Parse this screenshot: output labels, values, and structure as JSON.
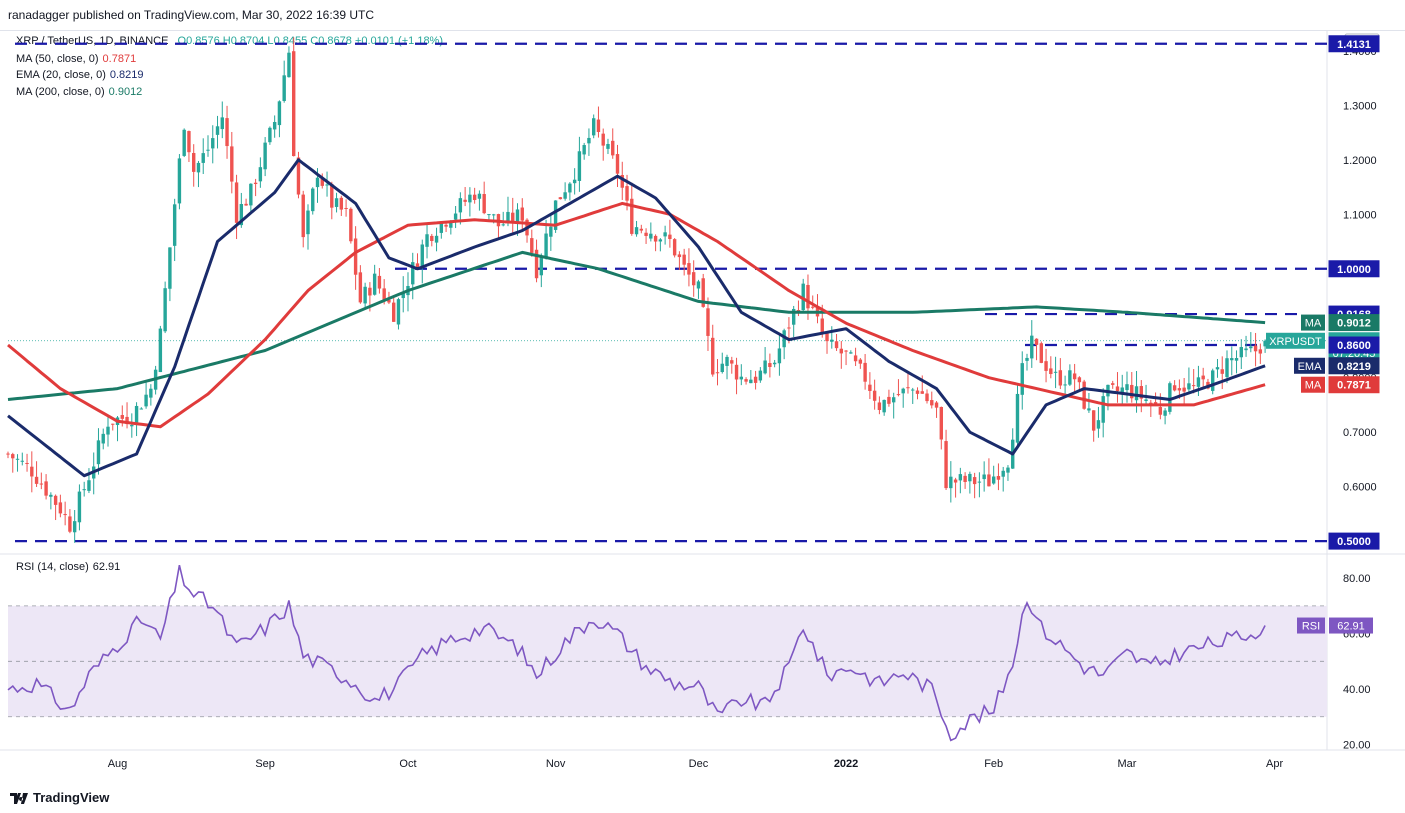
{
  "header": {
    "publisher": "ranadagger published on TradingView.com, Mar 30, 2022 16:39 UTC"
  },
  "legend": {
    "symbol": "XRP / TetherUS, 1D, BINANCE",
    "ohlc": {
      "O": "0.8576",
      "H": "0.8704",
      "L": "0.8455",
      "C": "0.8678",
      "change": "+0.0101 (+1.18%)"
    },
    "ma50": {
      "label": "MA (50, close, 0)",
      "value": "0.7871",
      "color": "#e03b3b"
    },
    "ema20": {
      "label": "EMA (20, close, 0)",
      "value": "0.8219",
      "color": "#1a2b6b"
    },
    "ma200": {
      "label": "MA (200, close, 0)",
      "value": "0.9012",
      "color": "#1a7a66"
    }
  },
  "rsi_legend": {
    "label": "RSI (14, close)",
    "value": "62.91"
  },
  "footer": {
    "brand": "TradingView"
  },
  "colors": {
    "up": "#26a69a",
    "down": "#ef5350",
    "level": "#1a1aa8",
    "rsi": "#7e57c2",
    "rsi_band": "#ede7f6"
  },
  "chart_data": [
    {
      "type": "candlestick",
      "title": "XRP / TetherUS, 1D, BINANCE",
      "y_unit": "USDT",
      "ylim": [
        0.48,
        1.42
      ],
      "y_ticks": [
        "1.4000",
        "1.3000",
        "1.2000",
        "1.1000",
        "1.0000",
        "0.9000",
        "0.8000",
        "0.7000",
        "0.6000",
        "0.5000"
      ],
      "x_ticks": [
        "Aug",
        "Sep",
        "Oct",
        "Nov",
        "Dec",
        "2022",
        "Feb",
        "Mar",
        "Apr"
      ],
      "x_range": [
        "2021-07-09",
        "2022-04-12"
      ],
      "horizontal_levels": [
        "1.4131",
        "1.0000",
        "0.9168",
        "0.8600",
        "0.5000"
      ],
      "price_labels": [
        {
          "text": "1.4131",
          "value": 1.4131
        },
        {
          "text": "1.0000",
          "value": 1.0
        },
        {
          "text": "0.9168",
          "value": 0.9168
        },
        {
          "text": "0.9012",
          "value": 0.9012,
          "tag": "MA"
        },
        {
          "text": "0.8678",
          "value": 0.8678,
          "tag": "XRPUSDT",
          "sub": "07:20:45"
        },
        {
          "text": "0.8600",
          "value": 0.86
        },
        {
          "text": "0.8219",
          "value": 0.8219,
          "tag": "EMA"
        },
        {
          "text": "0.7871",
          "value": 0.7871,
          "tag": "MA"
        },
        {
          "text": "0.5000",
          "value": 0.5
        }
      ],
      "price_anchors": [
        [
          "2021-07-09",
          0.66
        ],
        [
          "2021-07-14",
          0.63
        ],
        [
          "2021-07-20",
          0.56
        ],
        [
          "2021-07-22",
          0.53
        ],
        [
          "2021-07-26",
          0.62
        ],
        [
          "2021-07-30",
          0.72
        ],
        [
          "2021-08-04",
          0.73
        ],
        [
          "2021-08-08",
          0.78
        ],
        [
          "2021-08-10",
          0.88
        ],
        [
          "2021-08-13",
          1.12
        ],
        [
          "2021-08-15",
          1.27
        ],
        [
          "2021-08-17",
          1.18
        ],
        [
          "2021-08-20",
          1.22
        ],
        [
          "2021-08-23",
          1.28
        ],
        [
          "2021-08-26",
          1.1
        ],
        [
          "2021-08-29",
          1.14
        ],
        [
          "2021-09-01",
          1.22
        ],
        [
          "2021-09-03",
          1.27
        ],
        [
          "2021-09-06",
          1.4
        ],
        [
          "2021-09-07",
          1.22
        ],
        [
          "2021-09-09",
          1.05
        ],
        [
          "2021-09-12",
          1.18
        ],
        [
          "2021-09-15",
          1.12
        ],
        [
          "2021-09-18",
          1.1
        ],
        [
          "2021-09-21",
          0.94
        ],
        [
          "2021-09-24",
          0.98
        ],
        [
          "2021-09-28",
          0.92
        ],
        [
          "2021-10-01",
          0.98
        ],
        [
          "2021-10-05",
          1.06
        ],
        [
          "2021-10-10",
          1.1
        ],
        [
          "2021-10-15",
          1.14
        ],
        [
          "2021-10-20",
          1.08
        ],
        [
          "2021-10-25",
          1.1
        ],
        [
          "2021-10-28",
          1.0
        ],
        [
          "2021-11-01",
          1.12
        ],
        [
          "2021-11-05",
          1.18
        ],
        [
          "2021-11-09",
          1.26
        ],
        [
          "2021-11-11",
          1.23
        ],
        [
          "2021-11-14",
          1.18
        ],
        [
          "2021-11-17",
          1.08
        ],
        [
          "2021-11-21",
          1.07
        ],
        [
          "2021-11-25",
          1.05
        ],
        [
          "2021-11-28",
          1.0
        ],
        [
          "2021-12-01",
          0.96
        ],
        [
          "2021-12-04",
          0.82
        ],
        [
          "2021-12-07",
          0.83
        ],
        [
          "2021-12-10",
          0.8
        ],
        [
          "2021-12-13",
          0.8
        ],
        [
          "2021-12-17",
          0.83
        ],
        [
          "2021-12-20",
          0.9
        ],
        [
          "2021-12-23",
          0.96
        ],
        [
          "2021-12-25",
          0.92
        ],
        [
          "2021-12-28",
          0.86
        ],
        [
          "2022-01-01",
          0.84
        ],
        [
          "2022-01-05",
          0.8
        ],
        [
          "2022-01-08",
          0.75
        ],
        [
          "2022-01-12",
          0.77
        ],
        [
          "2022-01-16",
          0.78
        ],
        [
          "2022-01-20",
          0.74
        ],
        [
          "2022-01-22",
          0.61
        ],
        [
          "2022-01-26",
          0.61
        ],
        [
          "2022-01-31",
          0.61
        ],
        [
          "2022-02-04",
          0.65
        ],
        [
          "2022-02-07",
          0.81
        ],
        [
          "2022-02-09",
          0.86
        ],
        [
          "2022-02-14",
          0.8
        ],
        [
          "2022-02-18",
          0.8
        ],
        [
          "2022-02-22",
          0.71
        ],
        [
          "2022-02-25",
          0.77
        ],
        [
          "2022-03-01",
          0.78
        ],
        [
          "2022-03-05",
          0.76
        ],
        [
          "2022-03-08",
          0.74
        ],
        [
          "2022-03-11",
          0.79
        ],
        [
          "2022-03-15",
          0.78
        ],
        [
          "2022-03-19",
          0.8
        ],
        [
          "2022-03-22",
          0.83
        ],
        [
          "2022-03-25",
          0.84
        ],
        [
          "2022-03-28",
          0.85
        ],
        [
          "2022-03-30",
          0.8678
        ]
      ],
      "ema20": [
        [
          "2021-07-09",
          0.73
        ],
        [
          "2021-07-25",
          0.62
        ],
        [
          "2021-08-05",
          0.66
        ],
        [
          "2021-08-13",
          0.82
        ],
        [
          "2021-08-22",
          1.05
        ],
        [
          "2021-09-03",
          1.14
        ],
        [
          "2021-09-08",
          1.2
        ],
        [
          "2021-09-20",
          1.12
        ],
        [
          "2021-09-27",
          1.02
        ],
        [
          "2021-10-03",
          1.0
        ],
        [
          "2021-10-15",
          1.04
        ],
        [
          "2021-10-25",
          1.07
        ],
        [
          "2021-11-04",
          1.12
        ],
        [
          "2021-11-14",
          1.17
        ],
        [
          "2021-11-22",
          1.13
        ],
        [
          "2021-12-01",
          1.04
        ],
        [
          "2021-12-10",
          0.92
        ],
        [
          "2021-12-20",
          0.87
        ],
        [
          "2022-01-01",
          0.89
        ],
        [
          "2022-01-10",
          0.83
        ],
        [
          "2022-01-20",
          0.78
        ],
        [
          "2022-01-27",
          0.7
        ],
        [
          "2022-02-05",
          0.66
        ],
        [
          "2022-02-12",
          0.75
        ],
        [
          "2022-02-20",
          0.78
        ],
        [
          "2022-03-01",
          0.77
        ],
        [
          "2022-03-10",
          0.76
        ],
        [
          "2022-03-20",
          0.79
        ],
        [
          "2022-03-30",
          0.8219
        ]
      ],
      "ma50": [
        [
          "2021-07-09",
          0.86
        ],
        [
          "2021-07-20",
          0.78
        ],
        [
          "2021-08-01",
          0.72
        ],
        [
          "2021-08-10",
          0.71
        ],
        [
          "2021-08-20",
          0.77
        ],
        [
          "2021-09-01",
          0.87
        ],
        [
          "2021-09-10",
          0.96
        ],
        [
          "2021-09-20",
          1.03
        ],
        [
          "2021-10-01",
          1.08
        ],
        [
          "2021-10-15",
          1.09
        ],
        [
          "2021-11-01",
          1.08
        ],
        [
          "2021-11-15",
          1.12
        ],
        [
          "2021-11-25",
          1.1
        ],
        [
          "2021-12-05",
          1.05
        ],
        [
          "2021-12-20",
          0.96
        ],
        [
          "2022-01-01",
          0.9
        ],
        [
          "2022-01-15",
          0.85
        ],
        [
          "2022-01-31",
          0.8
        ],
        [
          "2022-02-10",
          0.78
        ],
        [
          "2022-02-25",
          0.75
        ],
        [
          "2022-03-15",
          0.75
        ],
        [
          "2022-03-30",
          0.7871
        ]
      ],
      "ma200": [
        [
          "2021-07-09",
          0.76
        ],
        [
          "2021-08-01",
          0.78
        ],
        [
          "2021-09-01",
          0.85
        ],
        [
          "2021-10-01",
          0.96
        ],
        [
          "2021-10-25",
          1.03
        ],
        [
          "2021-11-10",
          1.0
        ],
        [
          "2021-12-01",
          0.94
        ],
        [
          "2021-12-20",
          0.92
        ],
        [
          "2022-01-15",
          0.92
        ],
        [
          "2022-02-10",
          0.93
        ],
        [
          "2022-03-01",
          0.92
        ],
        [
          "2022-03-30",
          0.9012
        ]
      ]
    },
    {
      "type": "line",
      "title": "RSI (14, close)",
      "ylim": [
        18,
        88
      ],
      "y_ticks": [
        "80.00",
        "60.00",
        "40.00",
        "20.00"
      ],
      "bands": [
        70,
        50,
        30
      ],
      "last_label": {
        "tag": "RSI",
        "text": "62.91"
      },
      "values": [
        [
          "2021-07-09",
          40
        ],
        [
          "2021-07-15",
          42
        ],
        [
          "2021-07-22",
          32
        ],
        [
          "2021-07-26",
          45
        ],
        [
          "2021-08-02",
          58
        ],
        [
          "2021-08-06",
          65
        ],
        [
          "2021-08-10",
          58
        ],
        [
          "2021-08-14",
          82
        ],
        [
          "2021-08-17",
          74
        ],
        [
          "2021-08-21",
          70
        ],
        [
          "2021-08-26",
          55
        ],
        [
          "2021-09-01",
          62
        ],
        [
          "2021-09-06",
          70
        ],
        [
          "2021-09-09",
          52
        ],
        [
          "2021-09-14",
          48
        ],
        [
          "2021-09-20",
          42
        ],
        [
          "2021-09-24",
          36
        ],
        [
          "2021-09-28",
          40
        ],
        [
          "2021-10-04",
          52
        ],
        [
          "2021-10-10",
          58
        ],
        [
          "2021-10-17",
          62
        ],
        [
          "2021-10-24",
          55
        ],
        [
          "2021-10-28",
          45
        ],
        [
          "2021-11-03",
          57
        ],
        [
          "2021-11-09",
          66
        ],
        [
          "2021-11-14",
          60
        ],
        [
          "2021-11-20",
          48
        ],
        [
          "2021-11-26",
          42
        ],
        [
          "2021-12-01",
          41
        ],
        [
          "2021-12-05",
          30
        ],
        [
          "2021-12-10",
          36
        ],
        [
          "2021-12-15",
          34
        ],
        [
          "2021-12-20",
          48
        ],
        [
          "2021-12-23",
          63
        ],
        [
          "2021-12-28",
          45
        ],
        [
          "2022-01-02",
          48
        ],
        [
          "2022-01-08",
          42
        ],
        [
          "2022-01-13",
          46
        ],
        [
          "2022-01-19",
          40
        ],
        [
          "2022-01-23",
          24
        ],
        [
          "2022-01-28",
          30
        ],
        [
          "2022-02-01",
          32
        ],
        [
          "2022-02-05",
          50
        ],
        [
          "2022-02-08",
          74
        ],
        [
          "2022-02-11",
          62
        ],
        [
          "2022-02-15",
          56
        ],
        [
          "2022-02-20",
          48
        ],
        [
          "2022-02-24",
          45
        ],
        [
          "2022-03-01",
          53
        ],
        [
          "2022-03-06",
          48
        ],
        [
          "2022-03-12",
          53
        ],
        [
          "2022-03-18",
          56
        ],
        [
          "2022-03-23",
          58
        ],
        [
          "2022-03-27",
          60
        ],
        [
          "2022-03-30",
          62.91
        ]
      ]
    }
  ]
}
